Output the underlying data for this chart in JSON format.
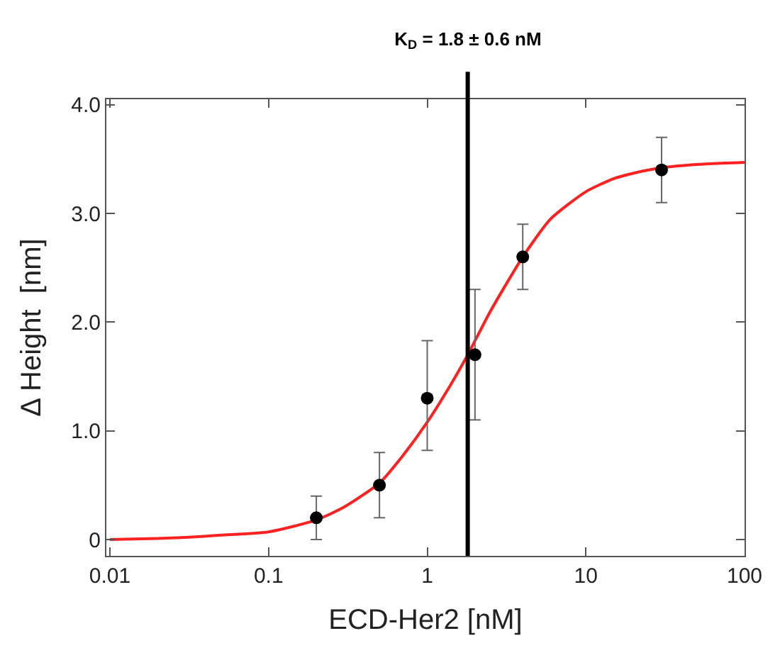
{
  "chart_data": {
    "type": "scatter",
    "title": "K$_{D}$ = 1.8 ± 0.6 nM",
    "xlabel": "ECD-Her2 [nM]",
    "ylabel": "Δ Height  [nm]",
    "log": "x",
    "xlim": [
      0.0095,
      100
    ],
    "xticks": [
      {
        "value": 0.01,
        "label": "0.01"
      },
      {
        "value": 0.1,
        "label": "0.1"
      },
      {
        "value": 1,
        "label": "1"
      },
      {
        "value": 10,
        "label": "10"
      },
      {
        "value": 100,
        "label": "100"
      }
    ],
    "ylim": [
      -0.15,
      4.05
    ],
    "yticks": [
      {
        "value": 0,
        "label": "0"
      },
      {
        "value": 1,
        "label": "1.0"
      },
      {
        "value": 2,
        "label": "2.0"
      },
      {
        "value": 3,
        "label": "3.0"
      },
      {
        "value": 4,
        "label": "4.0"
      }
    ],
    "series": [
      {
        "type": "line",
        "color": "#ff2020",
        "x": [
          0.01,
          0.02,
          0.03,
          0.05,
          0.1,
          0.2,
          0.3,
          0.5,
          0.7,
          1,
          1.4,
          1.8,
          2.5,
          4,
          6,
          10,
          15,
          20,
          30,
          50,
          100
        ],
        "values": [
          0.0,
          0.01,
          0.02,
          0.04,
          0.07,
          0.18,
          0.3,
          0.52,
          0.77,
          1.08,
          1.42,
          1.7,
          2.1,
          2.6,
          2.95,
          3.2,
          3.32,
          3.37,
          3.42,
          3.45,
          3.47
        ],
        "marker": "none"
      },
      {
        "color": "#000000",
        "x": [
          0.2,
          0.5,
          1,
          2,
          4,
          30
        ],
        "values": [
          0.2,
          0.5,
          1.3,
          1.7,
          2.6,
          3.4
        ],
        "errors": [
          [
            0.0,
            0.4
          ],
          [
            0.2,
            0.8
          ],
          [
            0.82,
            1.83
          ],
          [
            1.1,
            2.3
          ],
          [
            2.3,
            2.9
          ],
          [
            3.1,
            3.7
          ]
        ],
        "marker": "circle"
      }
    ],
    "ref_lines": [
      {
        "axis": "x",
        "value": 1.8,
        "color": "#000000"
      }
    ]
  }
}
